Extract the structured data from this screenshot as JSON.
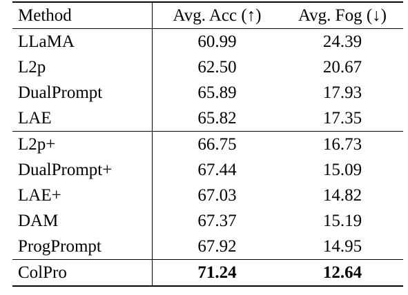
{
  "table": {
    "headers": {
      "method": "Method",
      "acc": "Avg. Acc (↑)",
      "fog": "Avg. Fog (↓)"
    },
    "rows": [
      {
        "method": "LLaMA",
        "acc": "60.99",
        "fog": "24.39"
      },
      {
        "method": "L2p",
        "acc": "62.50",
        "fog": "20.67"
      },
      {
        "method": "DualPrompt",
        "acc": "65.89",
        "fog": "17.93"
      },
      {
        "method": "LAE",
        "acc": "65.82",
        "fog": "17.35"
      },
      {
        "method": "L2p+",
        "acc": "66.75",
        "fog": "16.73"
      },
      {
        "method": "DualPrompt+",
        "acc": "67.44",
        "fog": "15.09"
      },
      {
        "method": "LAE+",
        "acc": "67.03",
        "fog": "14.82"
      },
      {
        "method": "DAM",
        "acc": "67.37",
        "fog": "15.19"
      },
      {
        "method": "ProgPrompt",
        "acc": "67.92",
        "fog": "14.95"
      },
      {
        "method": "ColPro",
        "acc": "71.24",
        "fog": "12.64"
      }
    ]
  }
}
